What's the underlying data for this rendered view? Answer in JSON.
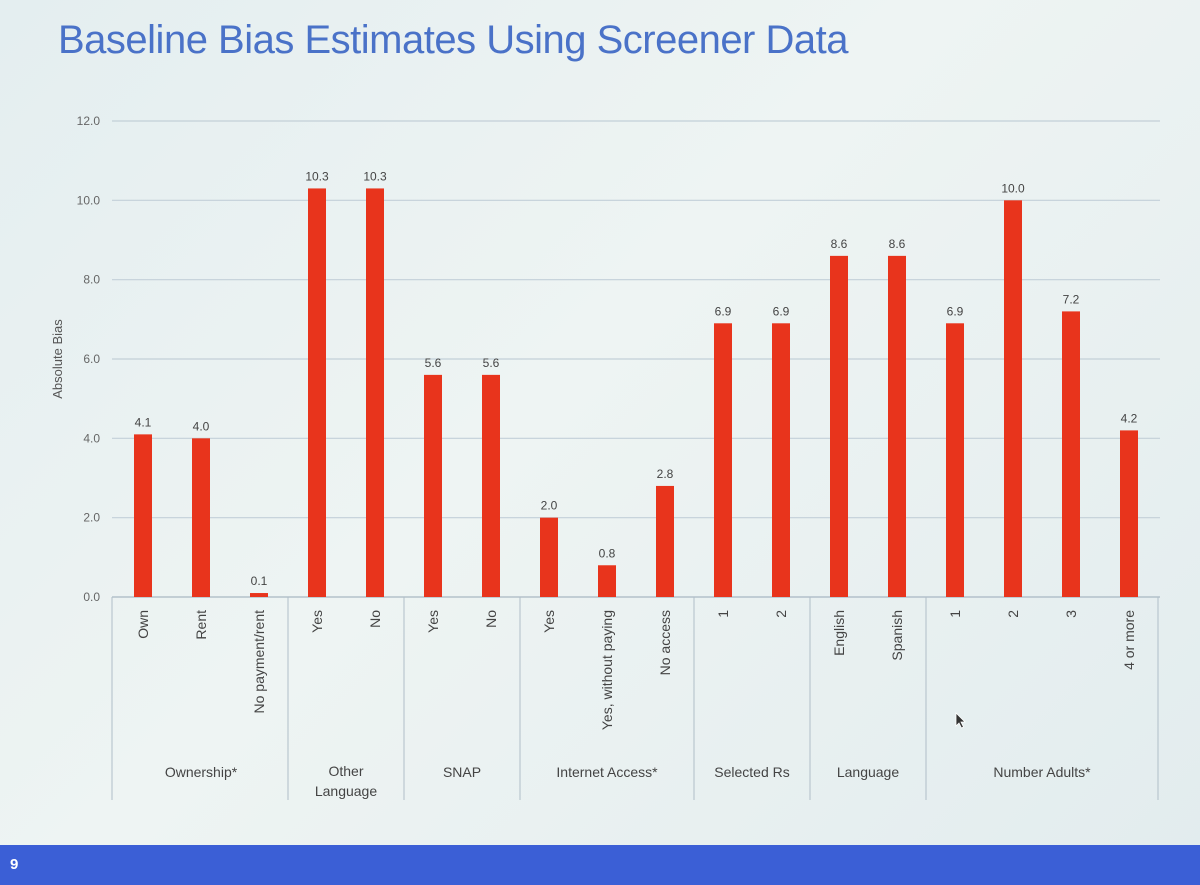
{
  "slide": {
    "title": "Baseline Bias Estimates Using Screener Data",
    "page_number": "9"
  },
  "colors": {
    "bar": "#e8341c",
    "title": "#4a72c8",
    "footer": "#3b5fd6"
  },
  "chart_data": {
    "type": "bar",
    "title": "",
    "xlabel": "",
    "ylabel": "Absolute Bias",
    "ylim": [
      0,
      12
    ],
    "y_ticks": [
      "0.0",
      "2.0",
      "4.0",
      "6.0",
      "8.0",
      "10.0",
      "12.0"
    ],
    "grid": true,
    "legend": "none",
    "groups": [
      {
        "label": [
          "Ownership*"
        ],
        "categories": [
          "Own",
          "Rent",
          "No payment/rent"
        ],
        "values": [
          4.1,
          4.0,
          0.1
        ],
        "labels": [
          "4.1",
          "4.0",
          "0.1"
        ]
      },
      {
        "label": [
          "Other",
          "Language"
        ],
        "categories": [
          "Yes",
          "No"
        ],
        "values": [
          10.3,
          10.3
        ],
        "labels": [
          "10.3",
          "10.3"
        ]
      },
      {
        "label": [
          "SNAP"
        ],
        "categories": [
          "Yes",
          "No"
        ],
        "values": [
          5.6,
          5.6
        ],
        "labels": [
          "5.6",
          "5.6"
        ]
      },
      {
        "label": [
          "Internet Access*"
        ],
        "categories": [
          "Yes",
          "Yes, without paying",
          "No access"
        ],
        "values": [
          2.0,
          0.8,
          2.8
        ],
        "labels": [
          "2.0",
          "0.8",
          "2.8"
        ]
      },
      {
        "label": [
          "Selected Rs"
        ],
        "categories": [
          "1",
          "2"
        ],
        "values": [
          6.9,
          6.9
        ],
        "labels": [
          "6.9",
          "6.9"
        ]
      },
      {
        "label": [
          "Language"
        ],
        "categories": [
          "English",
          "Spanish"
        ],
        "values": [
          8.6,
          8.6
        ],
        "labels": [
          "8.6",
          "8.6"
        ]
      },
      {
        "label": [
          "Number Adults*"
        ],
        "categories": [
          "1",
          "2",
          "3",
          "4 or more"
        ],
        "values": [
          6.9,
          10.0,
          7.2,
          4.2
        ],
        "labels": [
          "6.9",
          "10.0",
          "7.2",
          "4.2"
        ]
      }
    ]
  }
}
